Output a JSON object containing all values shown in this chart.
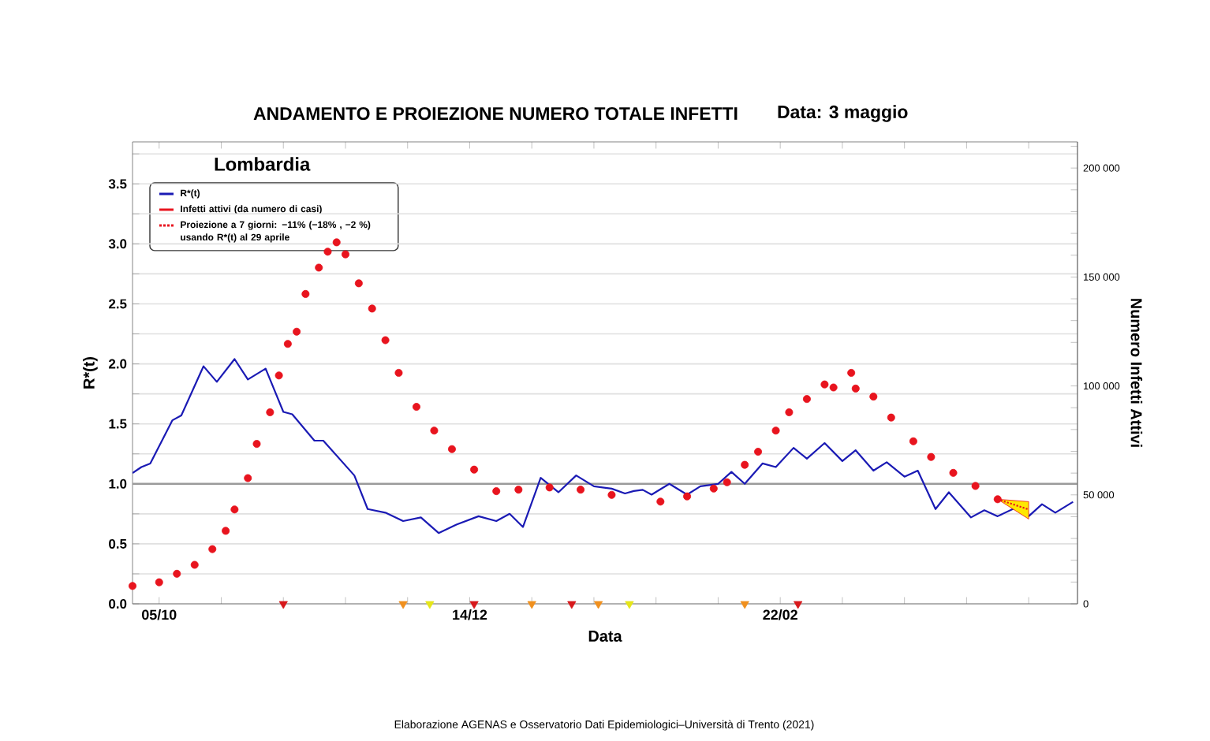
{
  "chart_data": {
    "type": "line",
    "title": "ANDAMENTO E PROIEZIONE NUMERO TOTALE INFETTI",
    "subtitle": "Data: 3 maggio",
    "xlabel": "Data",
    "ylabel": "R*(t)",
    "y2label": "Numero Infetti Attivi",
    "annotations": [
      "Lombardia",
      "Elaborazione AGENAS e Osservatorio Dati Epidemiologici–Università di Trento (2021)"
    ],
    "xlim": [
      "2020-09-29",
      "2021-04-30"
    ],
    "xticks": [
      {
        "value": "2020-10-05",
        "label": "05/10"
      },
      {
        "value": "2020-10-19",
        "label": null
      },
      {
        "value": "2020-11-02",
        "label": null
      },
      {
        "value": "2020-11-16",
        "label": null
      },
      {
        "value": "2020-11-30",
        "label": null
      },
      {
        "value": "2020-12-14",
        "label": "14/12"
      },
      {
        "value": "2020-12-28",
        "label": null
      },
      {
        "value": "2021-01-11",
        "label": null
      },
      {
        "value": "2021-01-25",
        "label": null
      },
      {
        "value": "2021-02-08",
        "label": null
      },
      {
        "value": "2021-02-22",
        "label": "22/02"
      },
      {
        "value": "2021-03-08",
        "label": null
      },
      {
        "value": "2021-03-22",
        "label": null
      },
      {
        "value": "2021-04-05",
        "label": null
      },
      {
        "value": "2021-04-19",
        "label": null
      }
    ],
    "ylim": [
      0,
      3.85
    ],
    "yticks": [
      {
        "value": 0,
        "label": "0.0"
      },
      {
        "value": 0.25,
        "label": null
      },
      {
        "value": 0.5,
        "label": "0.5"
      },
      {
        "value": 0.75,
        "label": null
      },
      {
        "value": 1,
        "label": "1.0"
      },
      {
        "value": 1.25,
        "label": null
      },
      {
        "value": 1.5,
        "label": "1.5"
      },
      {
        "value": 1.75,
        "label": null
      },
      {
        "value": 2,
        "label": "2.0"
      },
      {
        "value": 2.25,
        "label": null
      },
      {
        "value": 2.5,
        "label": "2.5"
      },
      {
        "value": 2.75,
        "label": null
      },
      {
        "value": 3,
        "label": "3.0"
      },
      {
        "value": 3.25,
        "label": null
      },
      {
        "value": 3.5,
        "label": "3.5"
      },
      {
        "value": 3.75,
        "label": null
      }
    ],
    "y2lim": [
      0,
      212000
    ],
    "y2ticks": [
      {
        "value": 0,
        "label": "0"
      },
      {
        "value": 10000,
        "label": null
      },
      {
        "value": 20000,
        "label": null
      },
      {
        "value": 30000,
        "label": null
      },
      {
        "value": 40000,
        "label": null
      },
      {
        "value": 50000,
        "label": "50 000"
      },
      {
        "value": 60000,
        "label": null
      },
      {
        "value": 70000,
        "label": null
      },
      {
        "value": 80000,
        "label": null
      },
      {
        "value": 90000,
        "label": null
      },
      {
        "value": 100000,
        "label": "100 000"
      },
      {
        "value": 110000,
        "label": null
      },
      {
        "value": 120000,
        "label": null
      },
      {
        "value": 130000,
        "label": null
      },
      {
        "value": 140000,
        "label": null
      },
      {
        "value": 150000,
        "label": "150 000"
      },
      {
        "value": 160000,
        "label": null
      },
      {
        "value": 170000,
        "label": null
      },
      {
        "value": 180000,
        "label": null
      },
      {
        "value": 190000,
        "label": null
      },
      {
        "value": 200000,
        "label": "200 000"
      },
      {
        "value": 210000,
        "label": null
      }
    ],
    "grid": "y",
    "legend": "top left",
    "ref_lines": [
      {
        "axis": "y",
        "value": 1,
        "color": "#9a9a9a"
      }
    ],
    "series": [
      {
        "name": "R*(t)",
        "type": "line",
        "color": "#1a1ab4",
        "marker": "none",
        "line_style": "solid",
        "x": [
          "2020-09-29",
          "2020-10-01",
          "2020-10-03",
          "2020-10-08",
          "2020-10-10",
          "2020-10-15",
          "2020-10-18",
          "2020-10-22",
          "2020-10-25",
          "2020-10-29",
          "2020-11-02",
          "2020-11-04",
          "2020-11-09",
          "2020-11-11",
          "2020-11-18",
          "2020-11-21",
          "2020-11-25",
          "2020-11-29",
          "2020-12-03",
          "2020-12-07",
          "2020-12-11",
          "2020-12-16",
          "2020-12-20",
          "2020-12-23",
          "2020-12-26",
          "2020-12-30",
          "2021-01-03",
          "2021-01-07",
          "2021-01-11",
          "2021-01-15",
          "2021-01-18",
          "2021-01-20",
          "2021-01-22",
          "2021-01-24",
          "2021-01-28",
          "2021-02-01",
          "2021-02-04",
          "2021-02-08",
          "2021-02-11",
          "2021-02-14",
          "2021-02-18",
          "2021-02-21",
          "2021-02-25",
          "2021-02-28",
          "2021-03-04",
          "2021-03-08",
          "2021-03-11",
          "2021-03-15",
          "2021-03-18",
          "2021-03-22",
          "2021-03-25",
          "2021-03-29",
          "2021-04-01",
          "2021-04-06",
          "2021-04-09",
          "2021-04-12",
          "2021-04-16",
          "2021-04-19",
          "2021-04-22",
          "2021-04-25",
          "2021-04-29"
        ],
        "values": [
          1.09,
          1.14,
          1.17,
          1.53,
          1.57,
          1.98,
          1.85,
          2.04,
          1.87,
          1.96,
          1.6,
          1.58,
          1.36,
          1.36,
          1.07,
          0.79,
          0.76,
          0.69,
          0.72,
          0.59,
          0.66,
          0.73,
          0.69,
          0.75,
          0.64,
          1.05,
          0.93,
          1.07,
          0.98,
          0.96,
          0.92,
          0.94,
          0.95,
          0.91,
          1.0,
          0.91,
          0.98,
          1.0,
          1.1,
          1.0,
          1.17,
          1.14,
          1.3,
          1.21,
          1.34,
          1.19,
          1.28,
          1.11,
          1.18,
          1.06,
          1.11,
          0.79,
          0.93,
          0.72,
          0.78,
          0.73,
          0.8,
          0.73,
          0.83,
          0.76,
          0.85
        ]
      },
      {
        "name": "Infetti attivi (da numero di casi)",
        "type": "scatter",
        "axis": "y2",
        "color": "#e8141e",
        "marker": "circle",
        "x": [
          "2020-09-29",
          "2020-10-05",
          "2020-10-09",
          "2020-10-13",
          "2020-10-17",
          "2020-10-20",
          "2020-10-22",
          "2020-10-25",
          "2020-10-27",
          "2020-10-30",
          "2020-11-01",
          "2020-11-03",
          "2020-11-05",
          "2020-11-07",
          "2020-11-10",
          "2020-11-12",
          "2020-11-14",
          "2020-11-16",
          "2020-11-19",
          "2020-11-22",
          "2020-11-25",
          "2020-11-28",
          "2020-12-02",
          "2020-12-06",
          "2020-12-10",
          "2020-12-15",
          "2020-12-20",
          "2020-12-25",
          "2021-01-01",
          "2021-01-08",
          "2021-01-15",
          "2021-01-26",
          "2021-02-01",
          "2021-02-07",
          "2021-02-10",
          "2021-02-14",
          "2021-02-17",
          "2021-02-21",
          "2021-02-24",
          "2021-02-28",
          "2021-03-04",
          "2021-03-06",
          "2021-03-10",
          "2021-03-11",
          "2021-03-15",
          "2021-03-19",
          "2021-03-24",
          "2021-03-28",
          "2021-04-02",
          "2021-04-07",
          "2021-04-12"
        ],
        "values": [
          8200,
          9900,
          13800,
          17900,
          25100,
          33500,
          43300,
          57700,
          73400,
          87900,
          104800,
          119300,
          124900,
          142200,
          154300,
          161600,
          165900,
          160400,
          147100,
          135500,
          121000,
          106000,
          90400,
          79500,
          71000,
          61600,
          51700,
          52400,
          53400,
          52400,
          50000,
          46900,
          49300,
          52900,
          55800,
          63800,
          69800,
          79500,
          87900,
          94000,
          100700,
          99300,
          106000,
          98800,
          95100,
          85500,
          74600,
          67400,
          60100,
          54100,
          48000
        ]
      },
      {
        "name": "Proiezione a 7 giorni: −11% (−18% , −2 %) usando R*(t) al 29 aprile",
        "type": "line",
        "axis": "y2",
        "color": "#e8141e",
        "marker": "none",
        "line_style": "dotted",
        "x": [
          "2021-04-12",
          "2021-04-19"
        ],
        "values": [
          48000,
          43300
        ],
        "lower": [
          48000,
          38900
        ],
        "upper": [
          48000,
          46900
        ]
      },
      {
        "type": "scatter",
        "marker": "triangle",
        "x": [
          "2020-11-02",
          "2020-11-29",
          "2020-12-05",
          "2020-12-15",
          "2020-12-28",
          "2021-01-06",
          "2021-01-12",
          "2021-01-19",
          "2021-02-14",
          "2021-02-26"
        ],
        "values": [
          0,
          0,
          0,
          0,
          0,
          0,
          0,
          0,
          0,
          0
        ],
        "colors": [
          "#d7191c",
          "#f0901e",
          "#e6e619",
          "#d7191c",
          "#f0901e",
          "#d7191c",
          "#f0901e",
          "#e6e619",
          "#f0901e",
          "#d7191c"
        ]
      }
    ]
  }
}
